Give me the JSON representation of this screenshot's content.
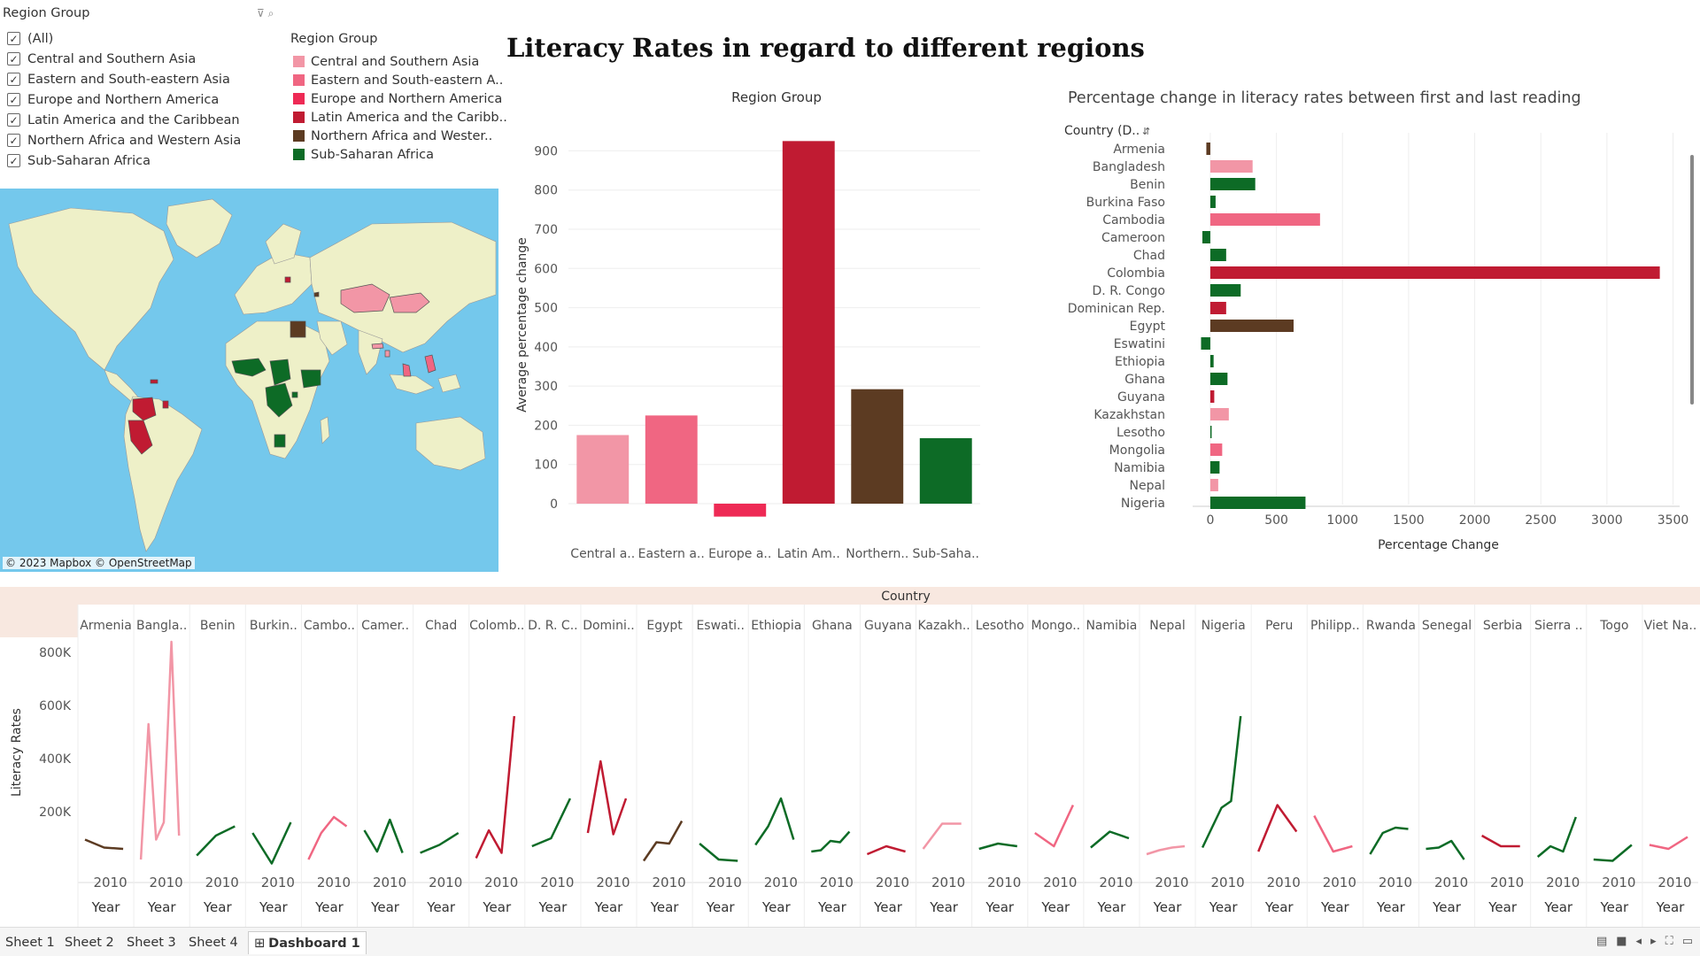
{
  "filter": {
    "title": "Region Group",
    "tool_icons": "filter-icon search-icon",
    "items": [
      {
        "label": "(All)",
        "checked": true
      },
      {
        "label": "Central and Southern Asia",
        "checked": true
      },
      {
        "label": "Eastern and South-eastern Asia",
        "checked": true
      },
      {
        "label": "Europe and Northern America",
        "checked": true
      },
      {
        "label": "Latin America and the Caribbean",
        "checked": true
      },
      {
        "label": "Northern Africa and Western Asia",
        "checked": true
      },
      {
        "label": "Sub-Saharan Africa",
        "checked": true
      }
    ]
  },
  "legend": {
    "title": "Region Group",
    "items": [
      {
        "label": "Central and Southern Asia",
        "color": "#f296a6"
      },
      {
        "label": "Eastern and South-eastern A..",
        "color": "#f06682"
      },
      {
        "label": "Europe and Northern America",
        "color": "#ee2a55"
      },
      {
        "label": "Latin America and the Caribb..",
        "color": "#c01b32"
      },
      {
        "label": "Northern Africa and Wester..",
        "color": "#5c3b22"
      },
      {
        "label": "Sub-Saharan Africa",
        "color": "#0d6b26"
      }
    ]
  },
  "map": {
    "attribution": "© 2023 Mapbox © OpenStreetMap",
    "ocean_color": "#74c8ec",
    "land_color": "#eef0c8"
  },
  "dashboard_title": "Literacy Rates in regard to different regions",
  "chart_data": [
    {
      "type": "bar",
      "title": "Region Group",
      "ylabel": "Average percentage change",
      "xlabel": "",
      "categories": [
        "Central a..",
        "Eastern a..",
        "Europe a..",
        "Latin Am..",
        "Northern..",
        "Sub-Saha.."
      ],
      "values": [
        175,
        225,
        -33,
        925,
        292,
        167
      ],
      "colors": [
        "#f296a6",
        "#f06682",
        "#ee2a55",
        "#c01b32",
        "#5c3b22",
        "#0d6b26"
      ],
      "yticks": [
        0,
        100,
        200,
        300,
        400,
        500,
        600,
        700,
        800,
        900
      ],
      "ylim": [
        -70,
        980
      ],
      "grid": true
    },
    {
      "type": "bar",
      "orientation": "horizontal",
      "title": "Percentage change in literacy rates between first and last reading",
      "row_header": "Country (D..",
      "xlabel": "Percentage Change",
      "categories": [
        "Armenia",
        "Bangladesh",
        "Benin",
        "Burkina Faso",
        "Cambodia",
        "Cameroon",
        "Chad",
        "Colombia",
        "D. R. Congo",
        "Dominican Rep.",
        "Egypt",
        "Eswatini",
        "Ethiopia",
        "Ghana",
        "Guyana",
        "Kazakhstan",
        "Lesotho",
        "Mongolia",
        "Namibia",
        "Nepal",
        "Nigeria"
      ],
      "values": [
        -30,
        320,
        340,
        40,
        830,
        -60,
        120,
        3400,
        230,
        120,
        630,
        -70,
        25,
        130,
        30,
        140,
        10,
        90,
        70,
        60,
        720
      ],
      "colors": [
        "#5c3b22",
        "#f296a6",
        "#0d6b26",
        "#0d6b26",
        "#f06682",
        "#0d6b26",
        "#0d6b26",
        "#c01b32",
        "#0d6b26",
        "#c01b32",
        "#5c3b22",
        "#0d6b26",
        "#0d6b26",
        "#0d6b26",
        "#c01b32",
        "#f296a6",
        "#0d6b26",
        "#f06682",
        "#0d6b26",
        "#f296a6",
        "#0d6b26"
      ],
      "xticks": [
        0,
        500,
        1000,
        1500,
        2000,
        2500,
        3000,
        3500
      ],
      "xlim": [
        -100,
        3550
      ],
      "grid": true
    },
    {
      "type": "line",
      "title": "",
      "column_header": "Country",
      "ylabel": "Literacy Rates",
      "ylim": [
        0,
        850000
      ],
      "yticks": [
        200000,
        400000,
        600000,
        800000
      ],
      "ytick_labels": [
        "200K",
        "400K",
        "600K",
        "800K"
      ],
      "x_tick_label": "2010",
      "x_axis_label": "Year",
      "panels": [
        {
          "country": "Armenia",
          "color": "#5c3b22",
          "values": [
            95000,
            65000,
            60000
          ]
        },
        {
          "country": "Bangla..",
          "color": "#f296a6",
          "values": [
            20000,
            530000,
            95000,
            160000,
            840000,
            110000
          ]
        },
        {
          "country": "Benin",
          "color": "#0d6b26",
          "values": [
            35000,
            110000,
            145000
          ]
        },
        {
          "country": "Burkin..",
          "color": "#0d6b26",
          "values": [
            120000,
            5000,
            160000
          ]
        },
        {
          "country": "Cambo..",
          "color": "#f06682",
          "values": [
            20000,
            120000,
            180000,
            145000
          ]
        },
        {
          "country": "Camer..",
          "color": "#0d6b26",
          "values": [
            130000,
            50000,
            170000,
            45000
          ]
        },
        {
          "country": "Chad",
          "color": "#0d6b26",
          "values": [
            45000,
            75000,
            120000
          ]
        },
        {
          "country": "Colomb..",
          "color": "#c01b32",
          "values": [
            25000,
            130000,
            45000,
            560000
          ]
        },
        {
          "country": "D. R. C..",
          "color": "#0d6b26",
          "values": [
            70000,
            100000,
            250000
          ]
        },
        {
          "country": "Domini..",
          "color": "#c01b32",
          "values": [
            120000,
            390000,
            115000,
            250000
          ]
        },
        {
          "country": "Egypt",
          "color": "#5c3b22",
          "values": [
            15000,
            85000,
            80000,
            165000
          ]
        },
        {
          "country": "Eswati..",
          "color": "#0d6b26",
          "values": [
            80000,
            20000,
            15000
          ]
        },
        {
          "country": "Ethiopia",
          "color": "#0d6b26",
          "values": [
            75000,
            145000,
            250000,
            95000
          ]
        },
        {
          "country": "Ghana",
          "color": "#0d6b26",
          "values": [
            50000,
            55000,
            90000,
            85000,
            125000
          ]
        },
        {
          "country": "Guyana",
          "color": "#c01b32",
          "values": [
            40000,
            70000,
            50000
          ]
        },
        {
          "country": "Kazakh..",
          "color": "#f296a6",
          "values": [
            60000,
            155000,
            155000
          ]
        },
        {
          "country": "Lesotho",
          "color": "#0d6b26",
          "values": [
            60000,
            80000,
            70000
          ]
        },
        {
          "country": "Mongo..",
          "color": "#f06682",
          "values": [
            120000,
            70000,
            225000
          ]
        },
        {
          "country": "Namibia",
          "color": "#0d6b26",
          "values": [
            65000,
            125000,
            100000
          ]
        },
        {
          "country": "Nepal",
          "color": "#f296a6",
          "values": [
            40000,
            55000,
            65000,
            70000
          ]
        },
        {
          "country": "Nigeria",
          "color": "#0d6b26",
          "values": [
            65000,
            140000,
            215000,
            240000,
            560000
          ]
        },
        {
          "country": "Peru",
          "color": "#c01b32",
          "values": [
            50000,
            225000,
            125000
          ]
        },
        {
          "country": "Philipp..",
          "color": "#f06682",
          "values": [
            185000,
            50000,
            70000
          ]
        },
        {
          "country": "Rwanda",
          "color": "#0d6b26",
          "values": [
            40000,
            120000,
            140000,
            135000
          ]
        },
        {
          "country": "Senegal",
          "color": "#0d6b26",
          "values": [
            60000,
            65000,
            90000,
            20000
          ]
        },
        {
          "country": "Serbia",
          "color": "#c01b32",
          "values": [
            110000,
            70000,
            70000
          ]
        },
        {
          "country": "Sierra ..",
          "color": "#0d6b26",
          "values": [
            30000,
            70000,
            50000,
            180000
          ]
        },
        {
          "country": "Togo",
          "color": "#0d6b26",
          "values": [
            20000,
            15000,
            75000
          ]
        },
        {
          "country": "Viet Na..",
          "color": "#f06682",
          "values": [
            75000,
            60000,
            105000
          ]
        }
      ]
    }
  ],
  "tabs": [
    {
      "label": "Sheet 1",
      "active": false
    },
    {
      "label": "Sheet 2",
      "active": false
    },
    {
      "label": "Sheet 3",
      "active": false
    },
    {
      "label": "Sheet 4",
      "active": false
    },
    {
      "label": "Dashboard 1",
      "active": true
    }
  ],
  "tab_prefix_icon": "⊞"
}
